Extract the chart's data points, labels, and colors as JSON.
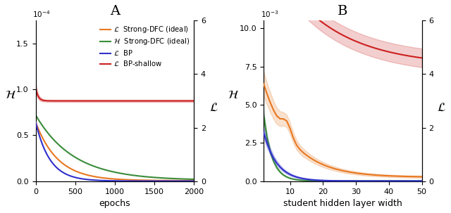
{
  "colors": {
    "orange": "#e87820",
    "green": "#3a8c3a",
    "blue": "#3030cc",
    "red": "#cc2020"
  },
  "panel_A": {
    "title": "A",
    "xlabel": "epochs",
    "xlim": [
      0,
      2000
    ],
    "ylim_left": [
      0,
      1.75
    ],
    "ylim_right": [
      0,
      6
    ],
    "yticks_left": [
      0,
      0.5,
      1.0,
      1.5
    ],
    "yticks_right": [
      0,
      2,
      4,
      6
    ],
    "scale_left": "10^{-4}"
  },
  "panel_B": {
    "title": "B",
    "xlabel": "student hidden layer width",
    "xlim": [
      2,
      50
    ],
    "ylim_left": [
      0,
      10.5
    ],
    "ylim_right": [
      0,
      6
    ],
    "yticks_left": [
      0,
      2.5,
      5.0,
      7.5,
      10.0
    ],
    "yticks_right": [
      0,
      2,
      4,
      6
    ],
    "xticks": [
      10,
      20,
      30,
      40,
      50
    ],
    "scale_left": "10^{-3}"
  }
}
